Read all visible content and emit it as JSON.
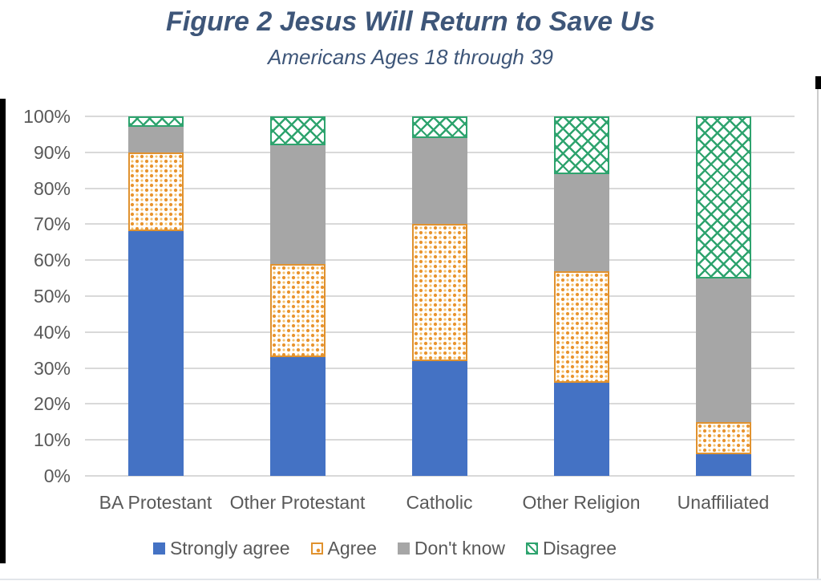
{
  "header": {
    "title": "Figure 2 Jesus Will Return to Save Us",
    "subtitle": "Americans Ages 18 through 39",
    "title_color": "#3E5679"
  },
  "chart_data": {
    "type": "bar",
    "stacked": true,
    "title": "Figure 2 Jesus Will Return to Save Us",
    "subtitle": "Americans Ages 18 through 39",
    "categories": [
      "BA Protestant",
      "Other Protestant",
      "Catholic",
      "Other Religion",
      "Unaffiliated"
    ],
    "series": [
      {
        "name": "Strongly agree",
        "color": "#4472C4",
        "pattern": "solid",
        "values": [
          68,
          33,
          32,
          26,
          6
        ]
      },
      {
        "name": "Agree",
        "color": "#E8922C",
        "pattern": "dots",
        "values": [
          22,
          26,
          38,
          31,
          9
        ]
      },
      {
        "name": "Don't know",
        "color": "#A6A6A6",
        "pattern": "solid",
        "values": [
          7,
          33,
          24,
          27,
          40
        ]
      },
      {
        "name": "Disagree",
        "color": "#2EA36E",
        "pattern": "crosshatch",
        "values": [
          3,
          8,
          6,
          16,
          45
        ]
      }
    ],
    "yticks": [
      "0%",
      "10%",
      "20%",
      "30%",
      "40%",
      "50%",
      "60%",
      "70%",
      "80%",
      "90%",
      "100%"
    ],
    "ylim": [
      0,
      100
    ],
    "grid": true,
    "gridline_color": "#D9D9D9",
    "axis_text_color": "#595959",
    "legend_position": "bottom"
  }
}
